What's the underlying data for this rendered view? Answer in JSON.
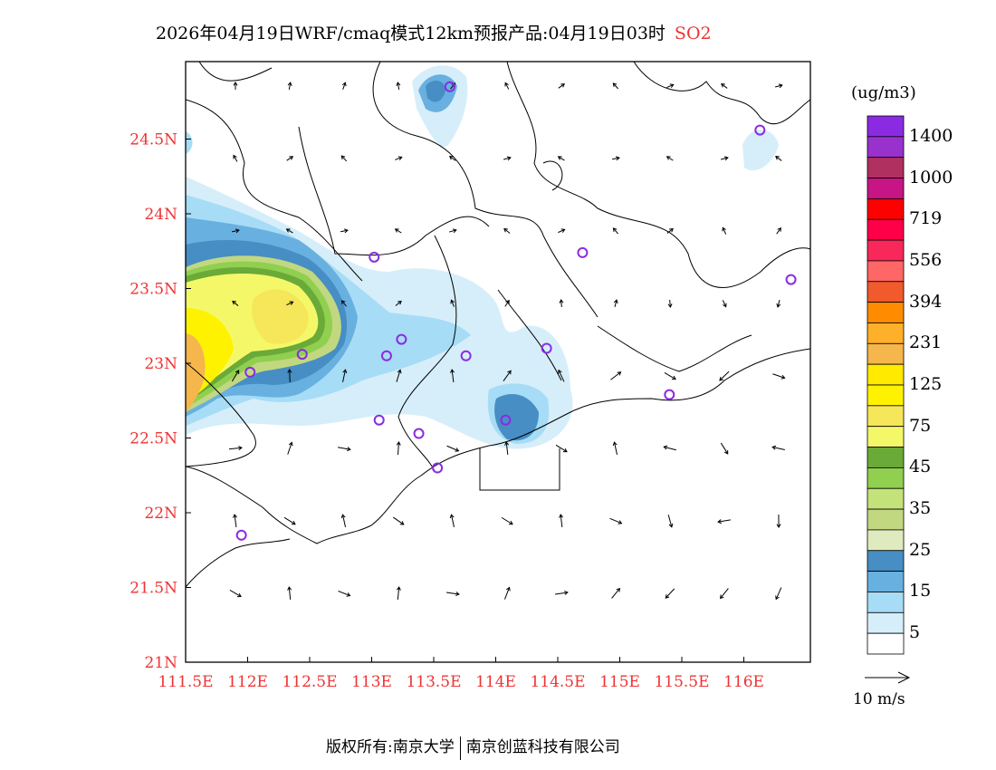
{
  "title": {
    "main": "2026年04月19日WRF/cmaq模式12km预报产品:04月19日03时",
    "species": "SO2"
  },
  "axes": {
    "lon_ticks": [
      "111.5E",
      "112E",
      "112.5E",
      "113E",
      "113.5E",
      "114E",
      "114.5E",
      "115E",
      "115.5E",
      "116E"
    ],
    "lon_values": [
      111.5,
      112,
      112.5,
      113,
      113.5,
      114,
      114.5,
      115,
      115.5,
      116
    ],
    "lat_ticks": [
      "21N",
      "21.5N",
      "22N",
      "22.5N",
      "23N",
      "23.5N",
      "24N",
      "24.5N"
    ],
    "lat_values": [
      21,
      21.5,
      22,
      22.5,
      23,
      23.5,
      24,
      24.5
    ],
    "lon_range": [
      111.5,
      116.55
    ],
    "lat_range": [
      21,
      25.0
    ]
  },
  "colorbar": {
    "unit": "(ug/m3)",
    "colors": [
      "#8a2be2",
      "#9932cc",
      "#b03060",
      "#c71585",
      "#ff0000",
      "#ff0048",
      "#f8285a",
      "#ff6666",
      "#f05a2c",
      "#ff8c00",
      "#ffb02a",
      "#f5b64c",
      "#ffea00",
      "#fff200",
      "#f5e65a",
      "#f4f868",
      "#6aaa38",
      "#90cf50",
      "#c4e27a",
      "#c2d880",
      "#dfeabf",
      "#468ec3",
      "#68b0e0",
      "#a6dcf6",
      "#d6eefa",
      "#ffffff"
    ],
    "labels": [
      "1400",
      "1000",
      "719",
      "556",
      "394",
      "231",
      "125",
      "75",
      "45",
      "35",
      "25",
      "15",
      "5"
    ]
  },
  "wind_scale": {
    "label": "10 m/s"
  },
  "stations": [
    [
      113.63,
      24.85
    ],
    [
      116.13,
      24.56
    ],
    [
      113.02,
      23.71
    ],
    [
      114.7,
      23.74
    ],
    [
      116.38,
      23.56
    ],
    [
      113.24,
      23.16
    ],
    [
      112.44,
      23.06
    ],
    [
      113.12,
      23.05
    ],
    [
      113.76,
      23.05
    ],
    [
      114.41,
      23.1
    ],
    [
      112.02,
      22.94
    ],
    [
      115.4,
      22.79
    ],
    [
      114.08,
      22.62
    ],
    [
      113.06,
      22.62
    ],
    [
      113.38,
      22.53
    ],
    [
      113.53,
      22.3
    ],
    [
      111.95,
      21.85
    ]
  ],
  "footer": {
    "left": "版权所有:南京大学",
    "right": "南京创蓝科技有限公司"
  }
}
